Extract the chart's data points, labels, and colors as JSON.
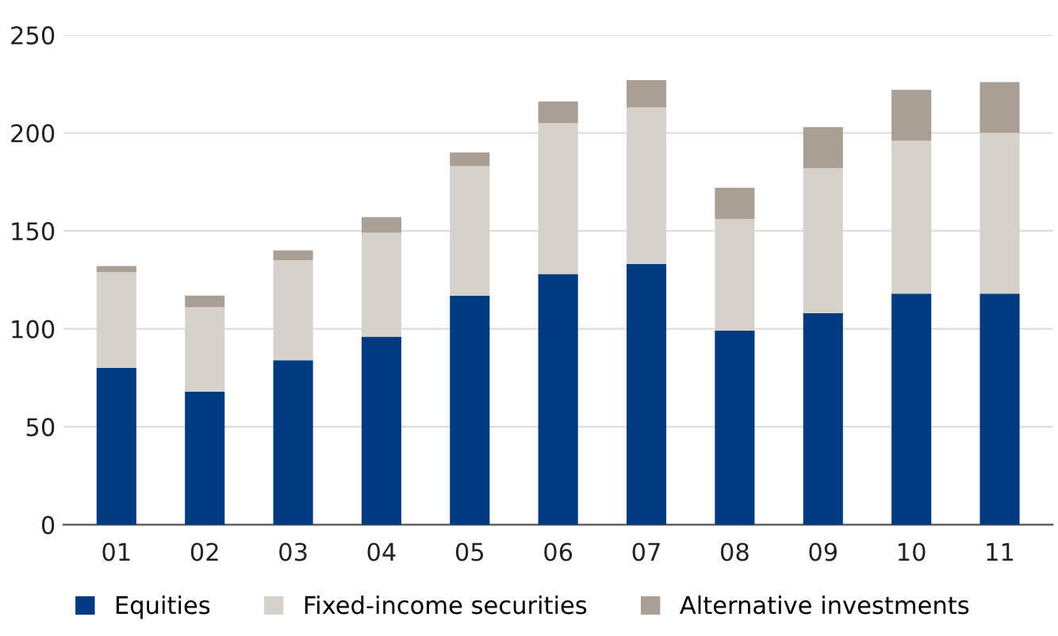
{
  "chart_data": {
    "type": "bar",
    "stacked": true,
    "categories": [
      "01",
      "02",
      "03",
      "04",
      "05",
      "06",
      "07",
      "08",
      "09",
      "10",
      "11"
    ],
    "series": [
      {
        "name": "Equities",
        "color": "#003a80",
        "values": [
          80,
          68,
          84,
          96,
          117,
          128,
          133,
          99,
          108,
          118,
          118
        ]
      },
      {
        "name": "Fixed-income securities",
        "color": "#d6d1ca",
        "values": [
          49,
          43,
          51,
          53,
          66,
          77,
          80,
          57,
          74,
          78,
          82
        ]
      },
      {
        "name": "Alternative investments",
        "color": "#a99f95",
        "values": [
          3,
          6,
          5,
          8,
          7,
          11,
          14,
          16,
          21,
          26,
          26
        ]
      }
    ],
    "ylim": [
      0,
      250
    ],
    "yticks": [
      0,
      50,
      100,
      150,
      200,
      250
    ],
    "grid": "y",
    "legend": "bottom"
  }
}
